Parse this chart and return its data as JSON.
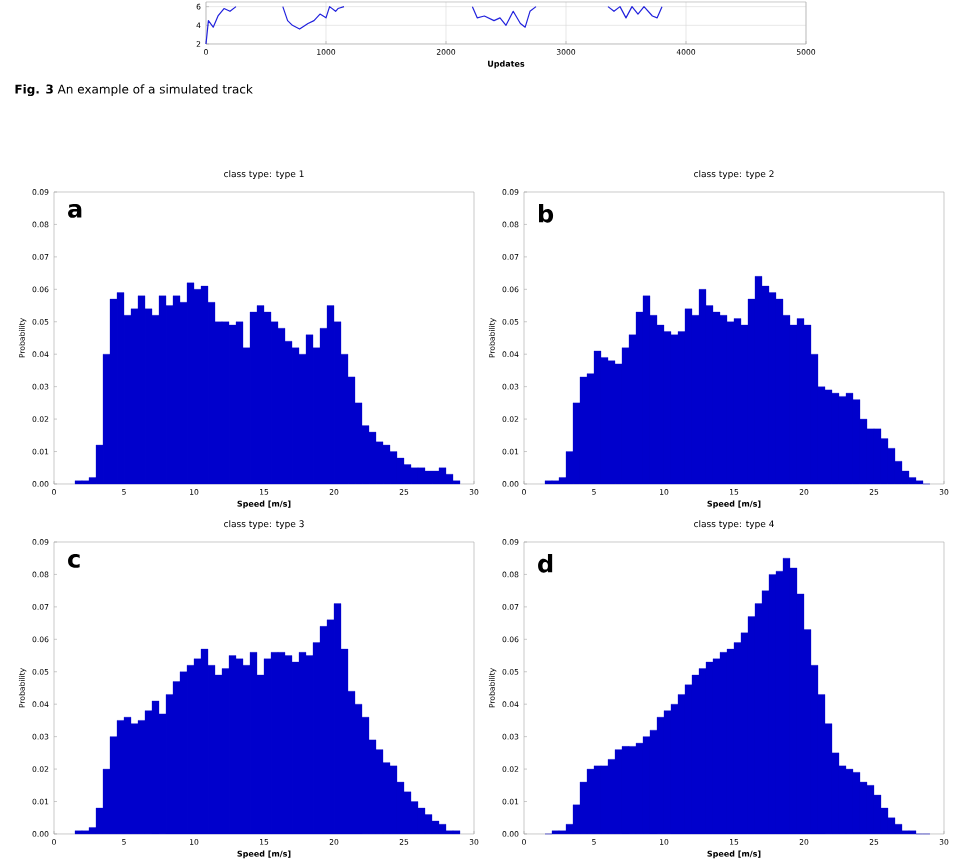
{
  "chart_data": [
    {
      "type": "line",
      "xlabel": "Updates",
      "xlim": [
        0,
        5000
      ],
      "ylim": [
        2,
        6.5
      ],
      "xticks": [
        0,
        1000,
        2000,
        3000,
        4000,
        5000
      ],
      "yticks": [
        2,
        4,
        6
      ],
      "grid": true,
      "color": "#2222dd",
      "x": [
        0,
        20,
        60,
        100,
        150,
        200,
        250,
        400,
        640,
        680,
        720,
        780,
        850,
        900,
        950,
        1000,
        1030,
        1080,
        1100,
        1150,
        1500,
        2220,
        2260,
        2320,
        2400,
        2450,
        2500,
        2560,
        2620,
        2660,
        2700,
        2750,
        3000,
        3350,
        3400,
        3450,
        3500,
        3550,
        3600,
        3650,
        3720,
        3760,
        3800
      ],
      "values": [
        2,
        4.5,
        3.8,
        5,
        5.8,
        5.5,
        6,
        null,
        6,
        4.5,
        4,
        3.6,
        4.2,
        4.5,
        5.2,
        4.8,
        6,
        5.5,
        5.8,
        6,
        null,
        6,
        4.8,
        5,
        4.5,
        4.8,
        4,
        5.5,
        4.2,
        3.8,
        5.5,
        6,
        null,
        6,
        5.5,
        6,
        4.8,
        6,
        5.2,
        6,
        5,
        4.8,
        6
      ],
      "annotations": [
        "**Fig. 3** An example of a simulated track"
      ]
    },
    {
      "type": "histogram",
      "title": "class type: type 1",
      "xlabel": "Speed [m/s]",
      "ylabel": "Probability",
      "color": "#0000cc",
      "annotations": [
        "a"
      ],
      "xlim": [
        0,
        30
      ],
      "ylim": [
        0,
        0.09
      ],
      "xticks": [
        0,
        5,
        10,
        15,
        20,
        25,
        30
      ],
      "yticks": [
        {
          "value": 0,
          "label": "0.00"
        },
        {
          "value": 0.01,
          "label": "0.01"
        },
        {
          "value": 0.02,
          "label": "0.02"
        },
        {
          "value": 0.03,
          "label": "0.03"
        },
        {
          "value": 0.04,
          "label": "0.04"
        },
        {
          "value": 0.05,
          "label": "0.05"
        },
        {
          "value": 0.06,
          "label": "0.06"
        },
        {
          "value": 0.07,
          "label": "0.07"
        },
        {
          "value": 0.08,
          "label": "0.08"
        },
        {
          "value": 0.09,
          "label": "0.09"
        }
      ],
      "bins": [
        1.5,
        2,
        2.5,
        3,
        3.5,
        4,
        4.5,
        5,
        5.5,
        6,
        6.5,
        7,
        7.5,
        8,
        8.5,
        9,
        9.5,
        10,
        10.5,
        11,
        11.5,
        12,
        12.5,
        13,
        13.5,
        14,
        14.5,
        15,
        15.5,
        16,
        16.5,
        17,
        17.5,
        18,
        18.5,
        19,
        19.5,
        20,
        20.5,
        21,
        21.5,
        22,
        22.5,
        23,
        23.5,
        24,
        24.5,
        25,
        25.5,
        26,
        26.5,
        27,
        27.5,
        28,
        28.5,
        29
      ],
      "values": [
        0.001,
        0.001,
        0.002,
        0.012,
        0.04,
        0.057,
        0.059,
        0.052,
        0.054,
        0.058,
        0.054,
        0.052,
        0.058,
        0.055,
        0.058,
        0.056,
        0.062,
        0.06,
        0.061,
        0.056,
        0.05,
        0.05,
        0.049,
        0.05,
        0.042,
        0.053,
        0.055,
        0.053,
        0.05,
        0.048,
        0.044,
        0.042,
        0.04,
        0.046,
        0.042,
        0.048,
        0.055,
        0.05,
        0.04,
        0.033,
        0.025,
        0.018,
        0.016,
        0.013,
        0.012,
        0.01,
        0.008,
        0.006,
        0.005,
        0.005,
        0.004,
        0.004,
        0.005,
        0.003,
        0.001
      ]
    },
    {
      "type": "histogram",
      "title": "class type: type 2",
      "xlabel": "Speed [m/s]",
      "ylabel": "Probability",
      "color": "#0000cc",
      "annotations": [
        "b"
      ],
      "xlim": [
        0,
        30
      ],
      "ylim": [
        0,
        0.09
      ],
      "xticks": [
        0,
        5,
        10,
        15,
        20,
        25,
        30
      ],
      "yticks": [
        {
          "value": 0,
          "label": "0.00"
        },
        {
          "value": 0.01,
          "label": "0.01"
        },
        {
          "value": 0.02,
          "label": "0.02"
        },
        {
          "value": 0.03,
          "label": "0.03"
        },
        {
          "value": 0.04,
          "label": "0.04"
        },
        {
          "value": 0.05,
          "label": "0.05"
        },
        {
          "value": 0.06,
          "label": "0.06"
        },
        {
          "value": 0.07,
          "label": "0.07"
        },
        {
          "value": 0.08,
          "label": "0.08"
        },
        {
          "value": 0.09,
          "label": "0.09"
        }
      ],
      "bins": [
        1.5,
        2,
        2.5,
        3,
        3.5,
        4,
        4.5,
        5,
        5.5,
        6,
        6.5,
        7,
        7.5,
        8,
        8.5,
        9,
        9.5,
        10,
        10.5,
        11,
        11.5,
        12,
        12.5,
        13,
        13.5,
        14,
        14.5,
        15,
        15.5,
        16,
        16.5,
        17,
        17.5,
        18,
        18.5,
        19,
        19.5,
        20,
        20.5,
        21,
        21.5,
        22,
        22.5,
        23,
        23.5,
        24,
        24.5,
        25,
        25.5,
        26,
        26.5,
        27,
        27.5,
        28,
        28.5,
        29
      ],
      "values": [
        0.001,
        0.001,
        0.002,
        0.01,
        0.025,
        0.033,
        0.034,
        0.041,
        0.039,
        0.038,
        0.037,
        0.042,
        0.046,
        0.053,
        0.058,
        0.052,
        0.049,
        0.047,
        0.046,
        0.047,
        0.054,
        0.052,
        0.06,
        0.055,
        0.053,
        0.052,
        0.05,
        0.051,
        0.049,
        0.057,
        0.064,
        0.061,
        0.059,
        0.057,
        0.052,
        0.049,
        0.051,
        0.049,
        0.04,
        0.03,
        0.029,
        0.028,
        0.027,
        0.028,
        0.026,
        0.02,
        0.017,
        0.017,
        0.014,
        0.011,
        0.007,
        0.004,
        0.002,
        0.001,
        0
      ]
    },
    {
      "type": "histogram",
      "title": "class type: type 3",
      "xlabel": "Speed [m/s]",
      "ylabel": "Probability",
      "color": "#0000cc",
      "annotations": [
        "c"
      ],
      "xlim": [
        0,
        30
      ],
      "ylim": [
        0,
        0.09
      ],
      "xticks": [
        0,
        5,
        10,
        15,
        20,
        25,
        30
      ],
      "yticks": [
        {
          "value": 0,
          "label": "0.00"
        },
        {
          "value": 0.01,
          "label": "0.01"
        },
        {
          "value": 0.02,
          "label": "0.02"
        },
        {
          "value": 0.03,
          "label": "0.03"
        },
        {
          "value": 0.04,
          "label": "0.04"
        },
        {
          "value": 0.05,
          "label": "0.05"
        },
        {
          "value": 0.06,
          "label": "0.06"
        },
        {
          "value": 0.07,
          "label": "0.07"
        },
        {
          "value": 0.08,
          "label": "0.08"
        },
        {
          "value": 0.09,
          "label": "0.09"
        }
      ],
      "bins": [
        1.5,
        2,
        2.5,
        3,
        3.5,
        4,
        4.5,
        5,
        5.5,
        6,
        6.5,
        7,
        7.5,
        8,
        8.5,
        9,
        9.5,
        10,
        10.5,
        11,
        11.5,
        12,
        12.5,
        13,
        13.5,
        14,
        14.5,
        15,
        15.5,
        16,
        16.5,
        17,
        17.5,
        18,
        18.5,
        19,
        19.5,
        20,
        20.5,
        21,
        21.5,
        22,
        22.5,
        23,
        23.5,
        24,
        24.5,
        25,
        25.5,
        26,
        26.5,
        27,
        27.5,
        28,
        28.5,
        29
      ],
      "values": [
        0.001,
        0.001,
        0.002,
        0.008,
        0.02,
        0.03,
        0.035,
        0.036,
        0.034,
        0.035,
        0.038,
        0.041,
        0.037,
        0.043,
        0.047,
        0.05,
        0.052,
        0.054,
        0.057,
        0.052,
        0.049,
        0.051,
        0.055,
        0.054,
        0.052,
        0.056,
        0.049,
        0.054,
        0.056,
        0.056,
        0.055,
        0.053,
        0.056,
        0.055,
        0.059,
        0.064,
        0.066,
        0.071,
        0.057,
        0.044,
        0.04,
        0.036,
        0.029,
        0.026,
        0.022,
        0.021,
        0.016,
        0.013,
        0.01,
        0.008,
        0.006,
        0.004,
        0.003,
        0.001,
        0.001
      ]
    },
    {
      "type": "histogram",
      "title": "class type: type 4",
      "xlabel": "Speed [m/s]",
      "ylabel": "Probability",
      "color": "#0000cc",
      "annotations": [
        "d"
      ],
      "xlim": [
        0,
        30
      ],
      "ylim": [
        0,
        0.09
      ],
      "xticks": [
        0,
        5,
        10,
        15,
        20,
        25,
        30
      ],
      "yticks": [
        {
          "value": 0,
          "label": "0.00"
        },
        {
          "value": 0.01,
          "label": "0.01"
        },
        {
          "value": 0.02,
          "label": "0.02"
        },
        {
          "value": 0.03,
          "label": "0.03"
        },
        {
          "value": 0.04,
          "label": "0.04"
        },
        {
          "value": 0.05,
          "label": "0.05"
        },
        {
          "value": 0.06,
          "label": "0.06"
        },
        {
          "value": 0.07,
          "label": "0.07"
        },
        {
          "value": 0.08,
          "label": "0.08"
        },
        {
          "value": 0.09,
          "label": "0.09"
        }
      ],
      "bins": [
        1.5,
        2,
        2.5,
        3,
        3.5,
        4,
        4.5,
        5,
        5.5,
        6,
        6.5,
        7,
        7.5,
        8,
        8.5,
        9,
        9.5,
        10,
        10.5,
        11,
        11.5,
        12,
        12.5,
        13,
        13.5,
        14,
        14.5,
        15,
        15.5,
        16,
        16.5,
        17,
        17.5,
        18,
        18.5,
        19,
        19.5,
        20,
        20.5,
        21,
        21.5,
        22,
        22.5,
        23,
        23.5,
        24,
        24.5,
        25,
        25.5,
        26,
        26.5,
        27,
        27.5,
        28,
        28.5,
        29
      ],
      "values": [
        0,
        0.001,
        0.001,
        0.003,
        0.009,
        0.016,
        0.02,
        0.021,
        0.021,
        0.023,
        0.026,
        0.027,
        0.027,
        0.028,
        0.03,
        0.032,
        0.036,
        0.038,
        0.04,
        0.043,
        0.046,
        0.049,
        0.051,
        0.053,
        0.054,
        0.056,
        0.057,
        0.059,
        0.062,
        0.067,
        0.071,
        0.075,
        0.08,
        0.081,
        0.085,
        0.082,
        0.074,
        0.063,
        0.052,
        0.043,
        0.034,
        0.025,
        0.021,
        0.02,
        0.019,
        0.016,
        0.015,
        0.012,
        0.008,
        0.005,
        0.003,
        0.001,
        0.001,
        0,
        0
      ]
    }
  ]
}
